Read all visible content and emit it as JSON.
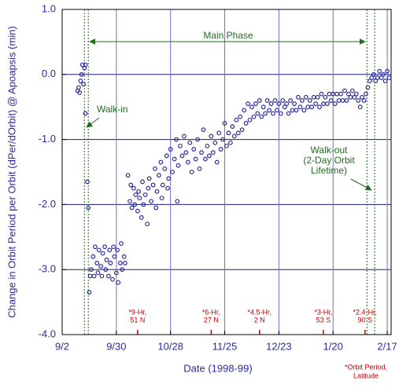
{
  "chart_data": {
    "type": "scatter",
    "xlabel": "Date (1998-99)",
    "ylabel": "Change in Orbit Period per Orbit (dPer/dOrbit) @ Apoapsis (min)",
    "color": "#2a2a9c",
    "grid": true,
    "xlim": [
      0,
      170
    ],
    "xticks": [
      {
        "value": 0,
        "label": "9/2"
      },
      {
        "value": 28,
        "label": "9/30"
      },
      {
        "value": 56,
        "label": "10/28"
      },
      {
        "value": 84,
        "label": "11/25"
      },
      {
        "value": 112,
        "label": "12/23"
      },
      {
        "value": 140,
        "label": "1/20"
      },
      {
        "value": 168,
        "label": "2/17"
      }
    ],
    "ylim": [
      -4,
      1
    ],
    "yticks": [
      {
        "value": 1,
        "label": "1.0"
      },
      {
        "value": 0,
        "label": "0.0"
      },
      {
        "value": -1,
        "label": "-1.0"
      },
      {
        "value": -2,
        "label": "-2.0"
      },
      {
        "value": -3,
        "label": "-3.0"
      },
      {
        "value": -4,
        "label": "-4.0"
      }
    ],
    "reference_lines": [
      11.5,
      13.5,
      157.5,
      161.5
    ],
    "annotations": {
      "main_phase": "Main Phase",
      "walk_in": "Walk-in",
      "walk_out": [
        "Walk-out",
        "(2-Day Orbit",
        "Lifetime)"
      ]
    },
    "orbit_markers": [
      {
        "x": 39,
        "lines": [
          "*9-Hr,",
          "51 N"
        ]
      },
      {
        "x": 77,
        "lines": [
          "*6-Hr,",
          "27 N"
        ]
      },
      {
        "x": 102,
        "lines": [
          "*4.5-Hr,",
          "2 N"
        ]
      },
      {
        "x": 135,
        "lines": [
          "*3-Hr,",
          "53 S"
        ]
      },
      {
        "x": 156.5,
        "lines": [
          "*2.4-Hr,",
          "90 S"
        ]
      }
    ],
    "footnote": [
      "*Orbit Period,",
      "Latitude"
    ],
    "x": [
      8,
      8.5,
      9,
      9.5,
      10,
      10.5,
      11,
      11.5,
      12,
      12,
      13,
      13.5,
      14,
      14.5,
      15,
      16,
      16.5,
      17,
      18,
      18.5,
      19,
      20,
      20.5,
      21,
      22,
      22.5,
      23,
      24,
      24.5,
      25,
      26,
      26.5,
      27,
      28,
      28.5,
      29,
      30,
      30.5,
      31,
      32,
      32.5,
      34,
      35,
      35.5,
      36,
      37,
      37.5,
      38,
      39,
      39.5,
      40,
      41,
      41.5,
      42,
      43,
      44,
      44.5,
      45,
      46,
      47,
      48,
      48.5,
      49,
      50,
      51,
      51.5,
      52,
      53,
      54,
      54.5,
      55,
      56,
      57,
      58,
      59,
      59.5,
      60,
      61,
      62,
      63,
      64,
      65,
      66,
      67,
      68,
      69,
      70,
      71,
      72,
      73,
      74,
      75,
      76,
      77,
      78,
      79,
      80,
      81,
      82,
      83,
      84,
      85,
      86,
      87,
      88,
      89,
      90,
      91,
      92,
      93,
      94,
      95,
      96,
      97,
      98,
      99,
      100,
      101,
      102,
      103,
      104,
      105,
      106,
      107,
      108,
      109,
      110,
      111,
      112,
      113,
      114,
      115,
      116,
      117,
      118,
      119,
      120,
      121,
      122,
      123,
      124,
      125,
      126,
      127,
      128,
      129,
      130,
      131,
      132,
      133,
      134,
      135,
      136,
      137,
      138,
      139,
      140,
      141,
      142,
      143,
      144,
      145,
      146,
      147,
      148,
      149,
      150,
      151,
      152,
      153,
      154,
      155,
      156,
      157,
      158,
      159,
      160,
      161,
      162,
      163,
      164,
      165,
      166,
      167,
      168,
      169
    ],
    "y": [
      -0.25,
      -0.2,
      -0.28,
      -0.1,
      0.0,
      0.15,
      -0.15,
      0.1,
      0.15,
      -0.6,
      -1.65,
      -2.05,
      -3.35,
      -3.1,
      -3.0,
      -2.8,
      -3.1,
      -2.65,
      -2.9,
      -3.05,
      -2.7,
      -2.95,
      -3.1,
      -2.75,
      -2.65,
      -3.0,
      -2.85,
      -3.1,
      -2.7,
      -2.9,
      -3.15,
      -2.65,
      -2.8,
      -3.05,
      -2.7,
      -3.2,
      -2.9,
      -2.6,
      -3.0,
      -2.8,
      -2.9,
      -1.55,
      -1.95,
      -1.7,
      -2.05,
      -1.75,
      -2.0,
      -1.85,
      -2.1,
      -1.8,
      -1.9,
      -2.2,
      -1.65,
      -2.0,
      -1.85,
      -2.3,
      -1.75,
      -1.6,
      -1.95,
      -1.7,
      -1.45,
      -2.05,
      -1.8,
      -1.55,
      -1.35,
      -1.9,
      -1.7,
      -1.45,
      -1.25,
      -1.75,
      -1.6,
      -1.15,
      -1.5,
      -1.3,
      -1.0,
      -1.95,
      -1.4,
      -1.1,
      -1.25,
      -0.95,
      -1.2,
      -1.35,
      -1.05,
      -1.5,
      -1.15,
      -1.3,
      -1.0,
      -1.45,
      -1.2,
      -0.85,
      -1.3,
      -1.1,
      -1.25,
      -0.95,
      -1.2,
      -1.05,
      -1.35,
      -0.9,
      -1.15,
      -1.0,
      -0.75,
      -1.1,
      -0.9,
      -1.05,
      -0.8,
      -0.95,
      -0.7,
      -0.9,
      -0.65,
      -0.85,
      -0.55,
      -0.75,
      -0.45,
      -0.7,
      -0.5,
      -0.65,
      -0.45,
      -0.6,
      -0.4,
      -0.65,
      -0.5,
      -0.6,
      -0.4,
      -0.55,
      -0.45,
      -0.6,
      -0.4,
      -0.55,
      -0.45,
      -0.6,
      -0.4,
      -0.5,
      -0.45,
      -0.6,
      -0.4,
      -0.55,
      -0.45,
      -0.55,
      -0.35,
      -0.5,
      -0.4,
      -0.55,
      -0.35,
      -0.5,
      -0.4,
      -0.5,
      -0.35,
      -0.45,
      -0.35,
      -0.5,
      -0.3,
      -0.45,
      -0.35,
      -0.45,
      -0.3,
      -0.4,
      -0.3,
      -0.45,
      -0.3,
      -0.4,
      -0.3,
      -0.4,
      -0.25,
      -0.4,
      -0.3,
      -0.35,
      -0.25,
      -0.35,
      -0.3,
      -0.4,
      -0.5,
      -0.35,
      -0.4,
      -0.3,
      -0.2,
      -0.1,
      -0.05,
      0.0,
      -0.1,
      -0.05,
      0.05,
      -0.05,
      0.0,
      -0.1,
      0.05,
      -0.05
    ]
  }
}
